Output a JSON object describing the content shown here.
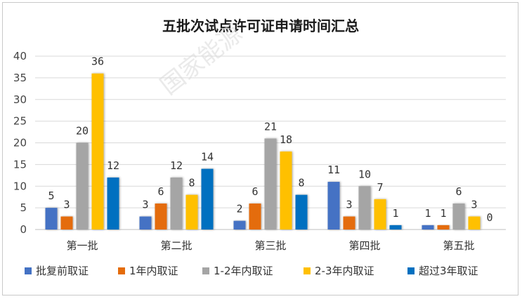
{
  "chart_data": {
    "type": "bar",
    "title": "五批次试点许可证申请时间汇总",
    "categories": [
      "第一批",
      "第二批",
      "第三批",
      "第四批",
      "第五批"
    ],
    "series": [
      {
        "name": "批复前取证",
        "color": "#4472C4",
        "values": [
          5,
          3,
          2,
          11,
          1
        ]
      },
      {
        "name": "1年内取证",
        "color": "#E46C0A",
        "values": [
          3,
          6,
          6,
          3,
          1
        ]
      },
      {
        "name": "1-2年内取证",
        "color": "#A5A5A5",
        "values": [
          20,
          12,
          21,
          10,
          6
        ]
      },
      {
        "name": "2-3年内取证",
        "color": "#FFC000",
        "values": [
          36,
          8,
          18,
          7,
          3
        ]
      },
      {
        "name": "超过3年取证",
        "color": "#0070C0",
        "values": [
          12,
          14,
          8,
          1,
          0
        ]
      }
    ],
    "ylim": [
      0,
      40
    ],
    "yticks": [
      0,
      5,
      10,
      15,
      20,
      25,
      30,
      35,
      40
    ],
    "grid": true,
    "legend": "bottom",
    "watermark": "国家能源"
  }
}
